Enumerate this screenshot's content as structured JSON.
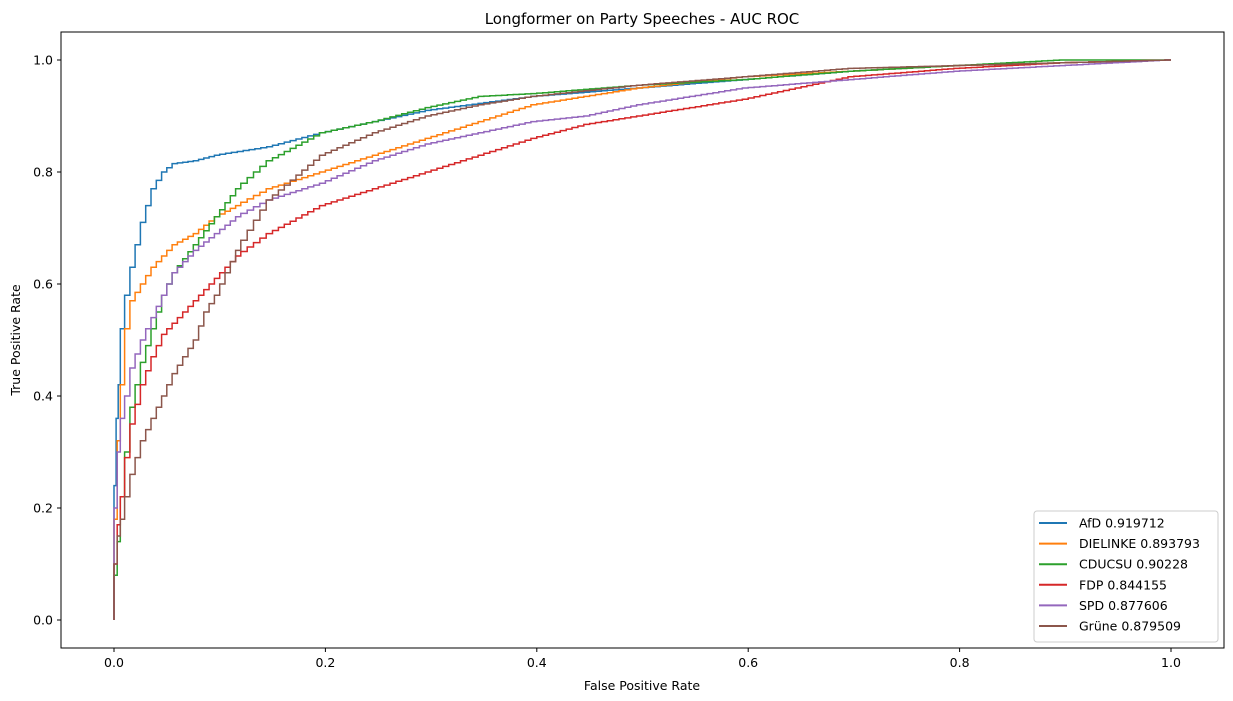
{
  "chart_data": {
    "type": "line",
    "title": "Longformer on Party Speeches - AUC ROC",
    "xlabel": "False Positive Rate",
    "ylabel": "True Positive Rate",
    "xlim": [
      -0.05,
      1.05
    ],
    "ylim": [
      -0.05,
      1.05
    ],
    "xticks": [
      "0.0",
      "0.2",
      "0.4",
      "0.6",
      "0.8",
      "1.0"
    ],
    "yticks": [
      "0.0",
      "0.2",
      "0.4",
      "0.6",
      "0.8",
      "1.0"
    ],
    "grid": false,
    "legend_position": "lower right",
    "series": [
      {
        "name": "AfD 0.919712",
        "party": "AfD",
        "auc": 0.919712,
        "color": "#1f77b4",
        "x": [
          0,
          0.002,
          0.004,
          0.006,
          0.01,
          0.015,
          0.02,
          0.025,
          0.03,
          0.035,
          0.04,
          0.05,
          0.06,
          0.08,
          0.1,
          0.15,
          0.2,
          0.25,
          0.3,
          0.4,
          0.5,
          0.6,
          0.7,
          0.8,
          0.9,
          1.0
        ],
        "y": [
          0,
          0.24,
          0.36,
          0.42,
          0.52,
          0.58,
          0.63,
          0.67,
          0.71,
          0.74,
          0.77,
          0.8,
          0.815,
          0.82,
          0.83,
          0.845,
          0.87,
          0.89,
          0.91,
          0.935,
          0.95,
          0.965,
          0.98,
          0.99,
          0.995,
          1.0
        ]
      },
      {
        "name": "DIELINKE 0.893793",
        "party": "DIELINKE",
        "auc": 0.893793,
        "color": "#ff7f0e",
        "x": [
          0,
          0.003,
          0.006,
          0.01,
          0.015,
          0.02,
          0.03,
          0.04,
          0.05,
          0.06,
          0.08,
          0.1,
          0.12,
          0.15,
          0.2,
          0.25,
          0.3,
          0.35,
          0.4,
          0.5,
          0.6,
          0.7,
          0.8,
          0.9,
          1.0
        ],
        "y": [
          0,
          0.18,
          0.32,
          0.42,
          0.52,
          0.57,
          0.6,
          0.63,
          0.65,
          0.67,
          0.69,
          0.72,
          0.74,
          0.77,
          0.8,
          0.83,
          0.86,
          0.89,
          0.92,
          0.95,
          0.97,
          0.98,
          0.99,
          0.995,
          1.0
        ]
      },
      {
        "name": "CDUCSU 0.90228",
        "party": "CDUCSU",
        "auc": 0.90228,
        "color": "#2ca02c",
        "x": [
          0,
          0.003,
          0.006,
          0.01,
          0.015,
          0.02,
          0.03,
          0.04,
          0.05,
          0.06,
          0.08,
          0.1,
          0.12,
          0.15,
          0.2,
          0.25,
          0.3,
          0.35,
          0.4,
          0.5,
          0.6,
          0.7,
          0.8,
          0.9,
          1.0
        ],
        "y": [
          0,
          0.08,
          0.14,
          0.22,
          0.3,
          0.38,
          0.46,
          0.52,
          0.58,
          0.62,
          0.67,
          0.72,
          0.77,
          0.82,
          0.87,
          0.89,
          0.915,
          0.935,
          0.94,
          0.955,
          0.965,
          0.98,
          0.99,
          1.0,
          1.0
        ]
      },
      {
        "name": "FDP 0.844155",
        "party": "FDP",
        "auc": 0.844155,
        "color": "#d62728",
        "x": [
          0,
          0.003,
          0.006,
          0.01,
          0.015,
          0.02,
          0.03,
          0.04,
          0.05,
          0.06,
          0.08,
          0.1,
          0.12,
          0.15,
          0.2,
          0.25,
          0.3,
          0.35,
          0.4,
          0.45,
          0.5,
          0.55,
          0.6,
          0.65,
          0.7,
          0.8,
          0.9,
          1.0
        ],
        "y": [
          0,
          0.1,
          0.17,
          0.22,
          0.29,
          0.35,
          0.42,
          0.47,
          0.51,
          0.53,
          0.57,
          0.61,
          0.65,
          0.69,
          0.74,
          0.77,
          0.8,
          0.83,
          0.86,
          0.885,
          0.9,
          0.915,
          0.93,
          0.95,
          0.97,
          0.985,
          0.995,
          1.0
        ]
      },
      {
        "name": "SPD 0.877606",
        "party": "SPD",
        "auc": 0.877606,
        "color": "#9467bd",
        "x": [
          0,
          0.003,
          0.006,
          0.01,
          0.015,
          0.02,
          0.03,
          0.04,
          0.05,
          0.06,
          0.08,
          0.1,
          0.12,
          0.15,
          0.2,
          0.25,
          0.3,
          0.35,
          0.4,
          0.45,
          0.5,
          0.6,
          0.7,
          0.8,
          0.9,
          1.0
        ],
        "y": [
          0,
          0.2,
          0.3,
          0.36,
          0.4,
          0.45,
          0.5,
          0.54,
          0.58,
          0.62,
          0.66,
          0.69,
          0.72,
          0.75,
          0.78,
          0.82,
          0.85,
          0.87,
          0.89,
          0.9,
          0.92,
          0.95,
          0.965,
          0.98,
          0.99,
          1.0
        ]
      },
      {
        "name": "Grüne 0.879509",
        "party": "Grüne",
        "auc": 0.879509,
        "color": "#8c564b",
        "x": [
          0,
          0.003,
          0.006,
          0.01,
          0.015,
          0.02,
          0.03,
          0.04,
          0.05,
          0.06,
          0.08,
          0.09,
          0.1,
          0.11,
          0.12,
          0.15,
          0.2,
          0.25,
          0.3,
          0.35,
          0.4,
          0.5,
          0.6,
          0.7,
          0.8,
          0.9,
          1.0
        ],
        "y": [
          0,
          0.1,
          0.15,
          0.18,
          0.22,
          0.26,
          0.32,
          0.36,
          0.4,
          0.44,
          0.5,
          0.55,
          0.58,
          0.62,
          0.66,
          0.75,
          0.83,
          0.87,
          0.9,
          0.92,
          0.935,
          0.955,
          0.97,
          0.985,
          0.99,
          0.995,
          1.0
        ]
      }
    ]
  }
}
